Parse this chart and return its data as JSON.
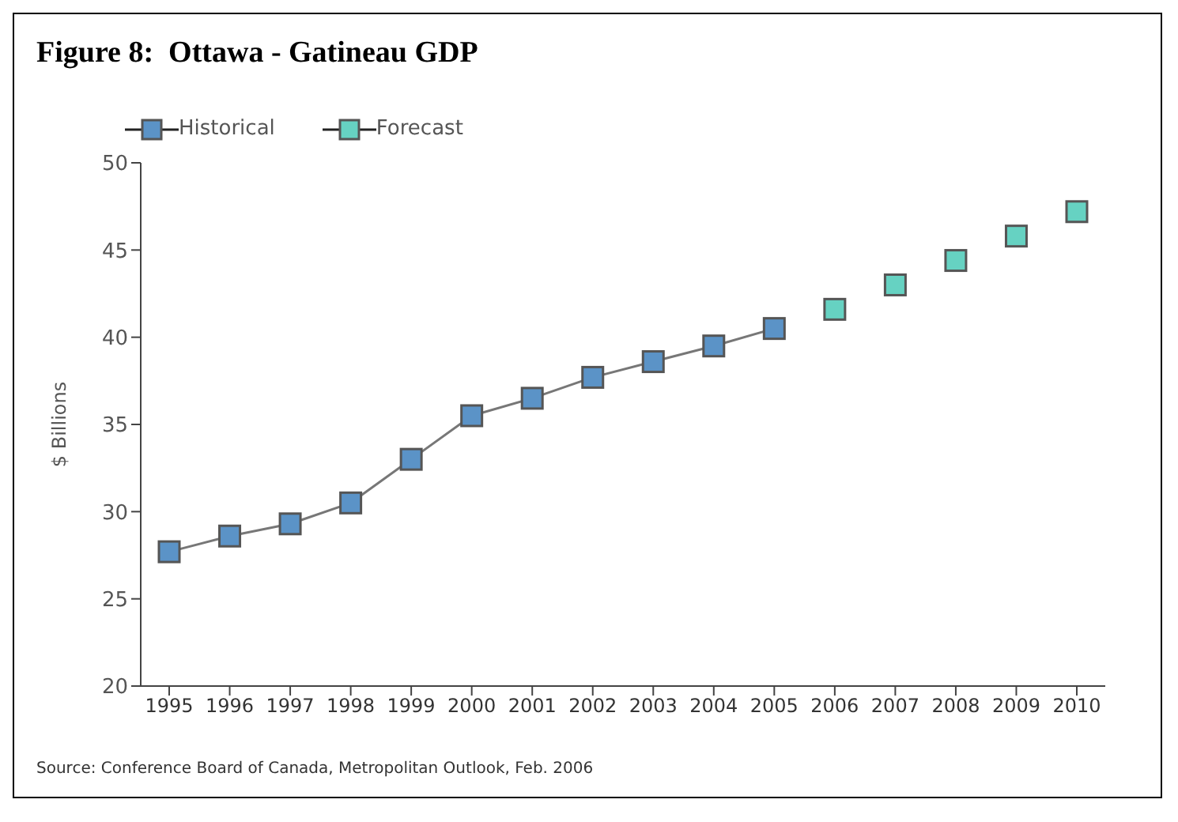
{
  "chart_data": {
    "type": "line",
    "title": "Figure 8:  Ottawa - Gatineau GDP",
    "ylabel": "$ Billions",
    "categories": [
      "1995",
      "1996",
      "1997",
      "1998",
      "1999",
      "2000",
      "2001",
      "2002",
      "2003",
      "2004",
      "2005",
      "2006",
      "2007",
      "2008",
      "2009",
      "2010"
    ],
    "series": [
      {
        "name": "Historical",
        "color": "#5b93c7",
        "values": [
          27.7,
          28.6,
          29.3,
          30.5,
          33.0,
          35.5,
          36.5,
          37.7,
          38.6,
          39.5,
          40.5,
          null,
          null,
          null,
          null,
          null
        ]
      },
      {
        "name": "Forecast",
        "type": "scatter",
        "color": "#66d2c2",
        "values": [
          null,
          null,
          null,
          null,
          null,
          null,
          null,
          null,
          null,
          null,
          null,
          41.6,
          43.0,
          44.4,
          45.8,
          47.2
        ]
      }
    ],
    "ylim": [
      20,
      50
    ],
    "yticks": [
      20,
      25,
      30,
      35,
      40,
      45,
      50
    ],
    "grid": false,
    "legend": "top left",
    "marker": "square",
    "annotations": [
      "Source: Conference Board of Canada, Metropolitan Outlook, Feb. 2006"
    ]
  }
}
